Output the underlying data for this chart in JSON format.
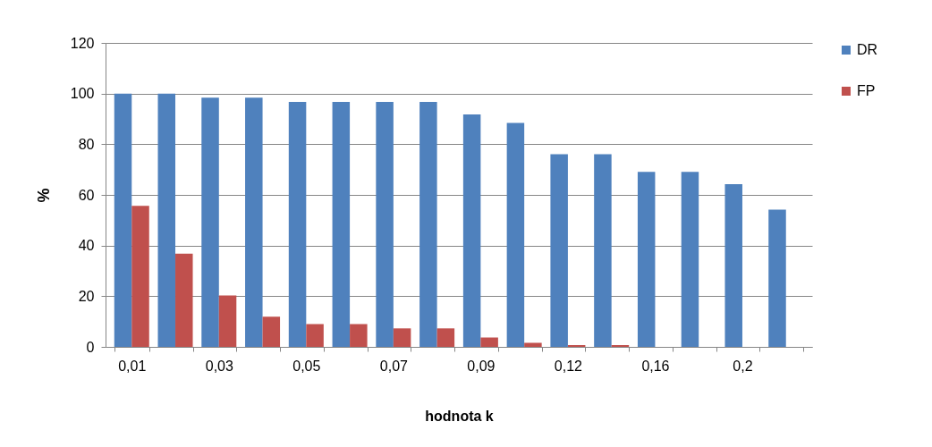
{
  "chart_data": {
    "type": "bar",
    "xlabel": "hodnota k",
    "ylabel": "%",
    "categories": [
      "0,01",
      null,
      "0,03",
      null,
      "0,05",
      null,
      "0,07",
      null,
      "0,09",
      null,
      "0,12",
      null,
      "0,16",
      null,
      "0,2",
      null
    ],
    "series": [
      {
        "name": "DR",
        "color": "#4f81bd",
        "values": [
          100,
          100,
          98.4,
          98.4,
          96.7,
          96.7,
          96.7,
          96.7,
          91.8,
          88.4,
          76.1,
          76.1,
          69.1,
          69.1,
          64.2,
          54.2
        ]
      },
      {
        "name": "FP",
        "color": "#c0504d",
        "values": [
          55.7,
          36.8,
          20.3,
          11.9,
          9.0,
          9.0,
          7.3,
          7.3,
          3.7,
          1.6,
          0.7,
          0.7,
          0,
          0,
          0,
          0
        ]
      }
    ],
    "ylim": [
      0,
      120
    ],
    "yticks": [
      0,
      20,
      40,
      60,
      80,
      100,
      120
    ],
    "grid": "y",
    "legend": "right"
  }
}
